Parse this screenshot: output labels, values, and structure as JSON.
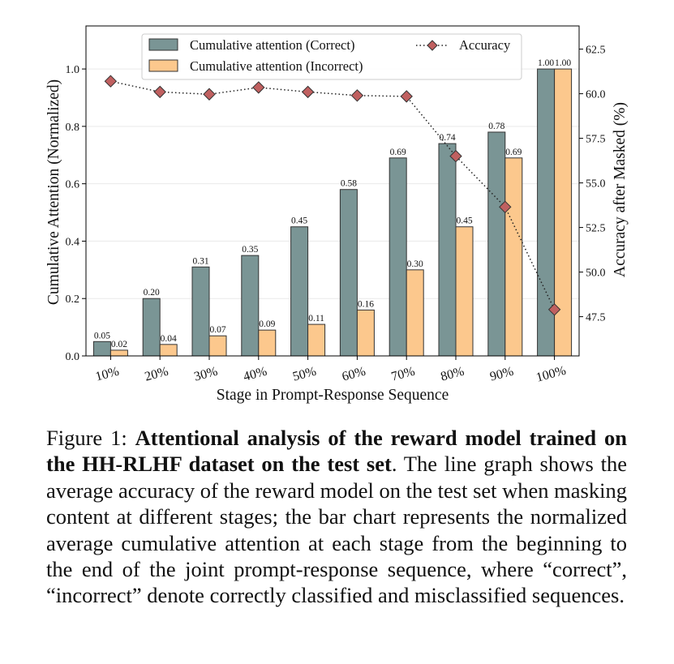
{
  "chart_data": {
    "type": "bar",
    "xlabel": "Stage in Prompt-Response Sequence",
    "ylabel": "Cumulative Attention (Normalized)",
    "y2label": "Accuracy after Masked (%)",
    "categories": [
      "10%",
      "20%",
      "30%",
      "40%",
      "50%",
      "60%",
      "70%",
      "80%",
      "90%",
      "100%"
    ],
    "ylim": [
      0,
      1.15
    ],
    "y2lim": [
      45.3,
      63.8
    ],
    "yticks": [
      "0.0",
      "0.2",
      "0.4",
      "0.6",
      "0.8",
      "1.0"
    ],
    "y2ticks": [
      "47.5",
      "50.0",
      "52.5",
      "55.0",
      "57.5",
      "60.0",
      "62.5"
    ],
    "grid": "horizontal",
    "legend_position": "top",
    "series": [
      {
        "name": "Cumulative attention (Correct)",
        "kind": "bar",
        "color": "#7a9595",
        "values": [
          0.05,
          0.2,
          0.31,
          0.35,
          0.45,
          0.58,
          0.69,
          0.74,
          0.78,
          1.0
        ],
        "labels": [
          "0.05",
          "0.20",
          "0.31",
          "0.35",
          "0.45",
          "0.58",
          "0.69",
          "0.74",
          "0.78",
          "1.00"
        ]
      },
      {
        "name": "Cumulative attention (Incorrect)",
        "kind": "bar",
        "color": "#fcc88d",
        "values": [
          0.02,
          0.04,
          0.07,
          0.09,
          0.11,
          0.16,
          0.3,
          0.45,
          0.69,
          1.0
        ],
        "labels": [
          "0.02",
          "0.04",
          "0.07",
          "0.09",
          "0.11",
          "0.16",
          "0.30",
          "0.45",
          "0.69",
          "1.00"
        ]
      },
      {
        "name": "Accuracy",
        "kind": "line",
        "axis": "right",
        "color": "#c06060",
        "marker": "diamond",
        "linestyle": "dotted",
        "values": [
          60.7,
          60.1,
          59.97,
          60.35,
          60.1,
          59.9,
          59.85,
          56.5,
          53.65,
          47.9
        ]
      }
    ]
  },
  "caption": {
    "prefix": "Figure 1: ",
    "bold": "Attentional analysis of the reward model trained on the HH-RLHF dataset on the test set",
    "rest": ". The line graph shows the average accuracy of the reward model on the test set when masking content at different stages; the bar chart represents the normalized average cumulative atten­tion at each stage from the beginning to the end of the joint prompt-response sequence, where “correct”, “incorrect” de­note correctly classified and misclassified sequences."
  }
}
